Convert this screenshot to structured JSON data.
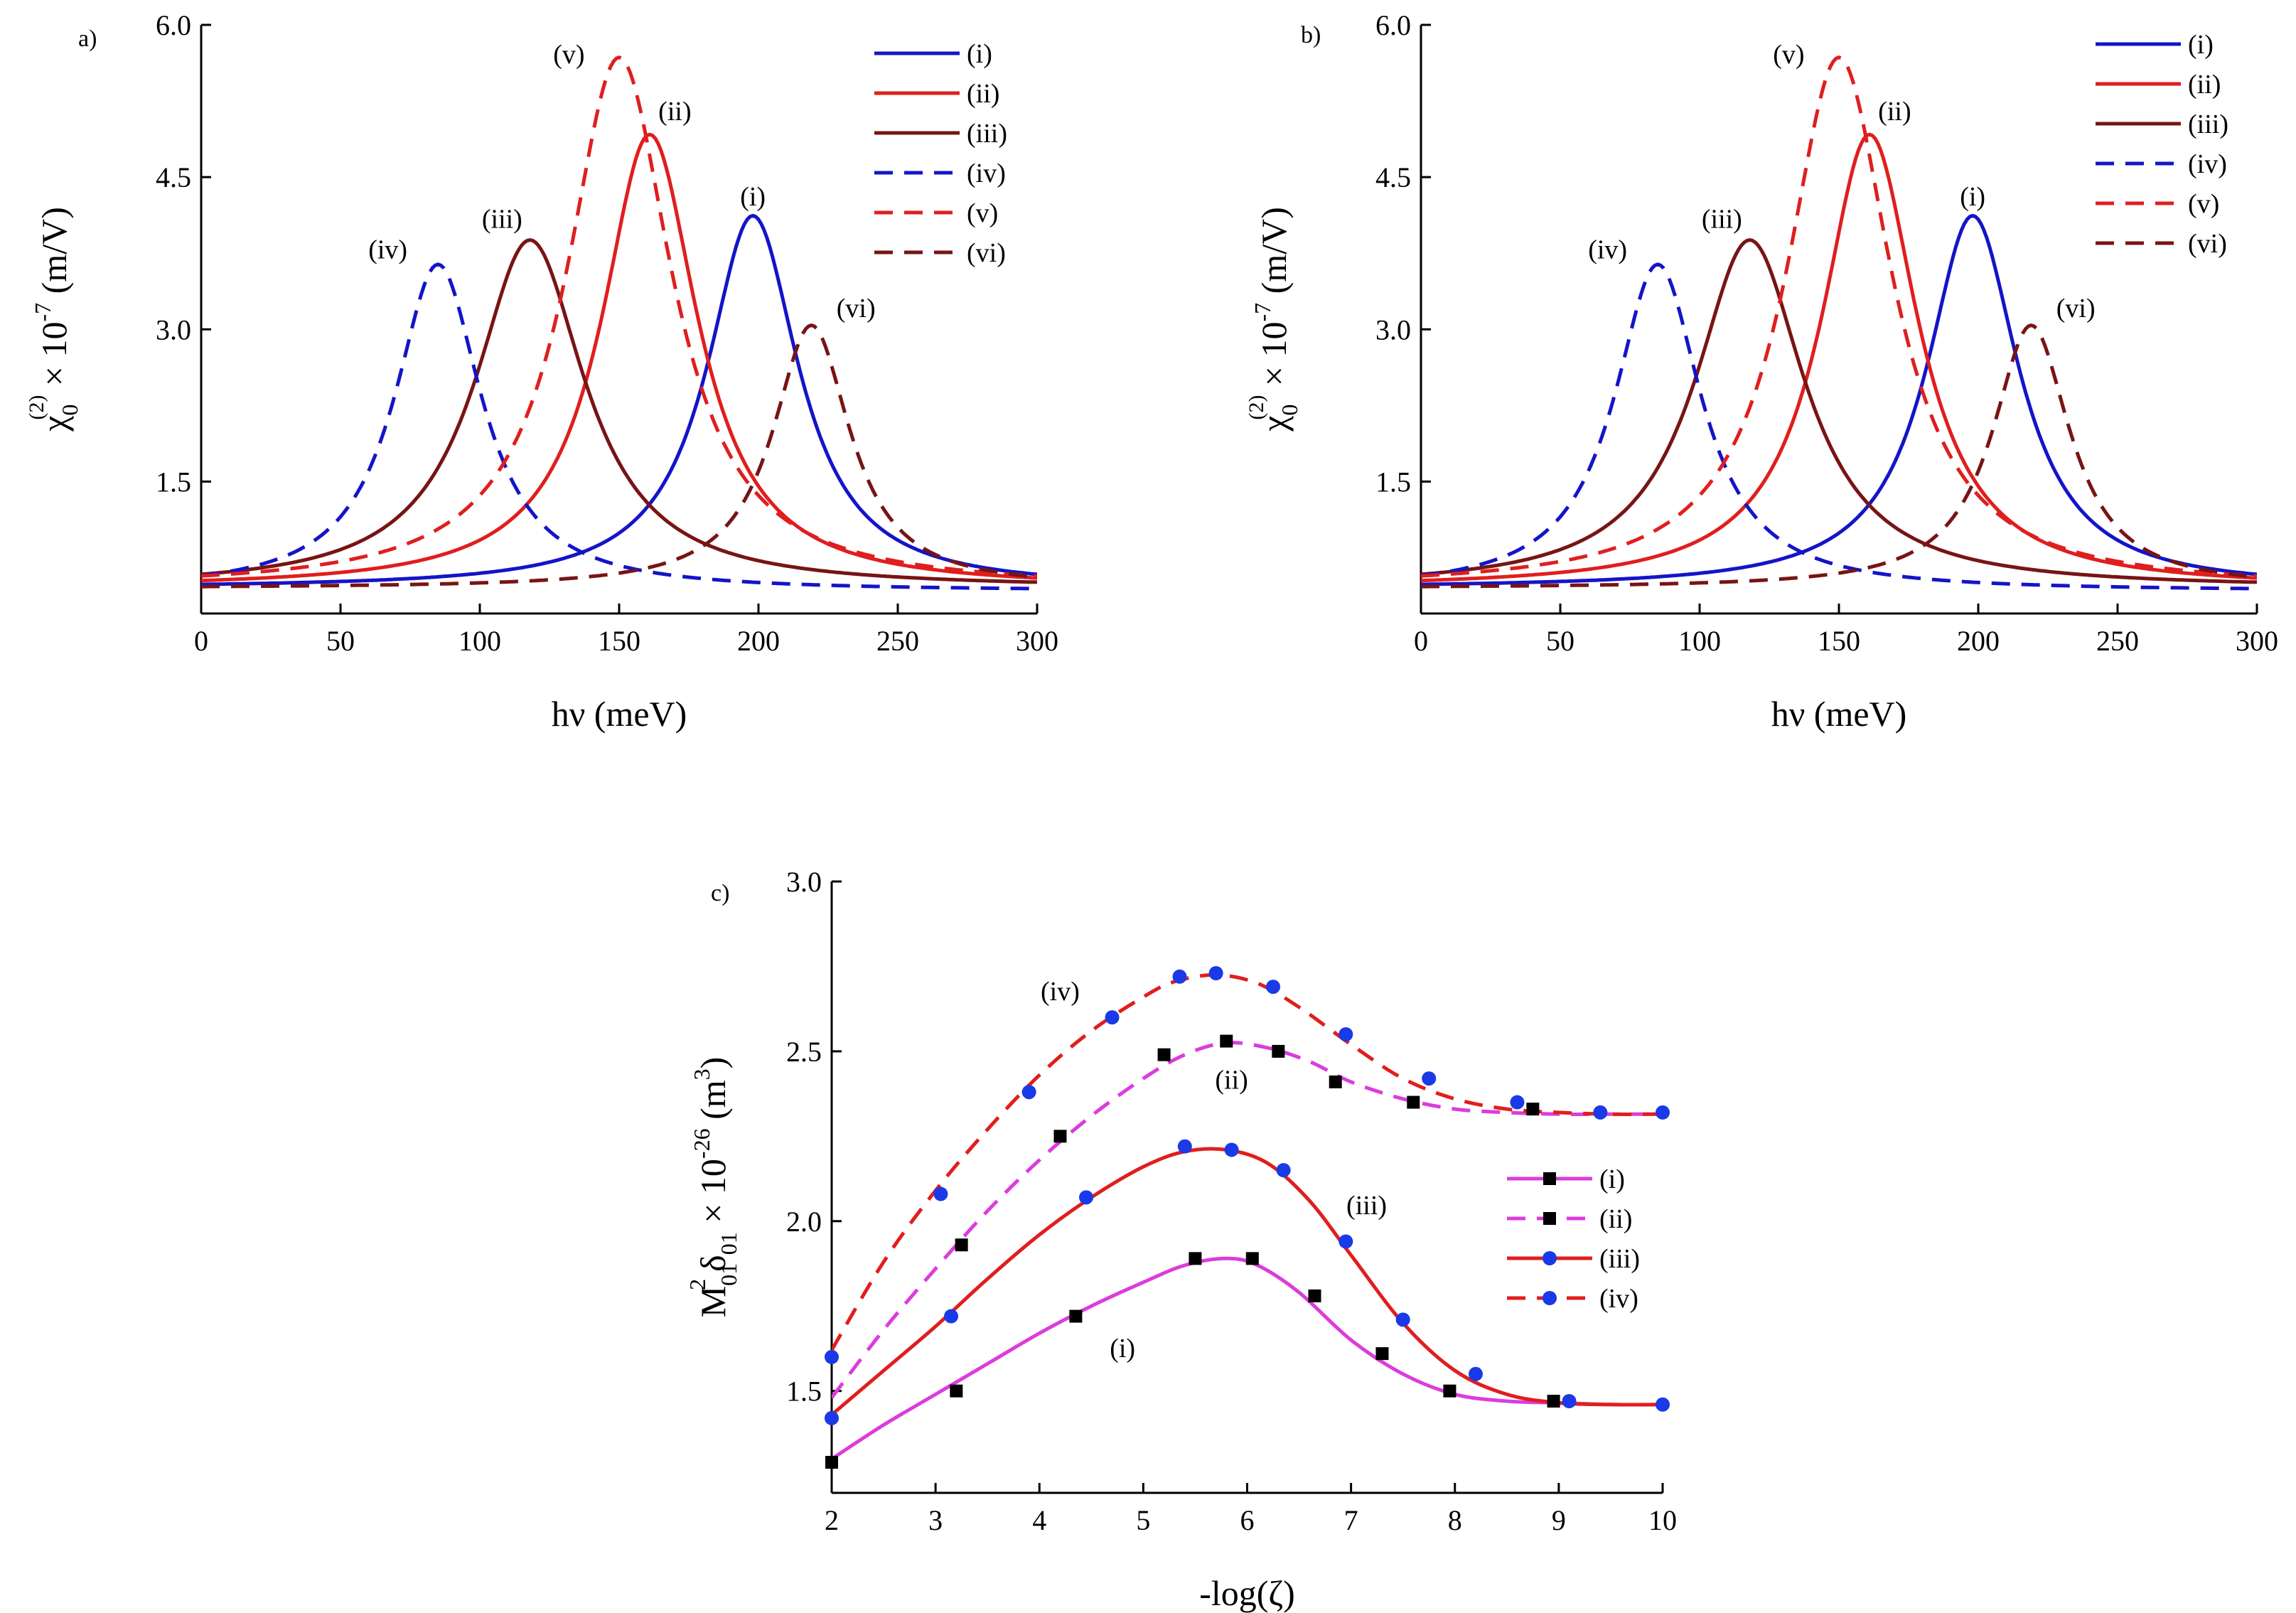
{
  "figure": {
    "colors": {
      "blue": "#1414c8",
      "red": "#e01e1e",
      "darkred": "#781414",
      "magenta": "#dc3cdc"
    }
  },
  "chart_data": [
    {
      "panel": "a)",
      "type": "line",
      "title": "",
      "xlabel": "hν (meV)",
      "ylabel_main": "χ",
      "ylabel_sub": "0",
      "ylabel_sup": "(2)",
      "ylabel_mid": " × 10",
      "ylabel_exp": "-7",
      "ylabel_unit": " (m/V)",
      "xlim": [
        0,
        300
      ],
      "ylim": [
        0.2,
        6.0
      ],
      "xticks": [
        "0",
        "50",
        "100",
        "150",
        "200",
        "250",
        "300"
      ],
      "yticks": [
        "1.5",
        "3.0",
        "4.5",
        "6.0"
      ],
      "legend_position": "top-right",
      "series": [
        {
          "name": "(i)",
          "peak": 198,
          "height": 4.12,
          "width": 20,
          "baseline": 0.45,
          "color": "blue",
          "dash": false
        },
        {
          "name": "(ii)",
          "peak": 161,
          "height": 4.92,
          "width": 21,
          "baseline": 0.45,
          "color": "red",
          "dash": false
        },
        {
          "name": "(iii)",
          "peak": 118,
          "height": 3.88,
          "width": 24,
          "baseline": 0.45,
          "color": "darkred",
          "dash": false
        },
        {
          "name": "(iv)",
          "peak": 85,
          "height": 3.64,
          "width": 19,
          "baseline": 0.42,
          "color": "blue",
          "dash": true
        },
        {
          "name": "(v)",
          "peak": 150,
          "height": 5.68,
          "width": 23,
          "baseline": 0.45,
          "color": "red",
          "dash": true
        },
        {
          "name": "(vi)",
          "peak": 219,
          "height": 3.04,
          "width": 17,
          "baseline": 0.45,
          "color": "darkred",
          "dash": true
        }
      ],
      "annotations": [
        {
          "text": "(i)",
          "x": 198,
          "y": 4.22
        },
        {
          "text": "(ii)",
          "x": 170,
          "y": 5.06
        },
        {
          "text": "(iii)",
          "x": 108,
          "y": 4.0
        },
        {
          "text": "(iv)",
          "x": 67,
          "y": 3.7
        },
        {
          "text": "(v)",
          "x": 132,
          "y": 5.62
        },
        {
          "text": "(vi)",
          "x": 235,
          "y": 3.12
        }
      ]
    },
    {
      "panel": "b)",
      "type": "line",
      "title": "",
      "xlabel": "hν (meV)",
      "ylabel_main": "χ",
      "ylabel_sub": "0",
      "ylabel_sup": "(2)",
      "ylabel_mid": " × 10",
      "ylabel_exp": "-7",
      "ylabel_unit": " (m/V)",
      "xlim": [
        0,
        300
      ],
      "ylim": [
        0.2,
        6.0
      ],
      "xticks": [
        "0",
        "50",
        "100",
        "150",
        "200",
        "250",
        "300"
      ],
      "yticks": [
        "1.5",
        "3.0",
        "4.5",
        "6.0"
      ],
      "legend_position": "top-right",
      "series": [
        {
          "name": "(i)",
          "peak": 198,
          "height": 4.12,
          "width": 20,
          "baseline": 0.45,
          "color": "blue",
          "dash": false
        },
        {
          "name": "(ii)",
          "peak": 161,
          "height": 4.92,
          "width": 21,
          "baseline": 0.45,
          "color": "red",
          "dash": false
        },
        {
          "name": "(iii)",
          "peak": 118,
          "height": 3.88,
          "width": 24,
          "baseline": 0.45,
          "color": "darkred",
          "dash": false
        },
        {
          "name": "(iv)",
          "peak": 85,
          "height": 3.64,
          "width": 19,
          "baseline": 0.42,
          "color": "blue",
          "dash": true
        },
        {
          "name": "(v)",
          "peak": 150,
          "height": 5.68,
          "width": 23,
          "baseline": 0.45,
          "color": "red",
          "dash": true
        },
        {
          "name": "(vi)",
          "peak": 219,
          "height": 3.04,
          "width": 17,
          "baseline": 0.45,
          "color": "darkred",
          "dash": true
        }
      ],
      "annotations": [
        {
          "text": "(i)",
          "x": 198,
          "y": 4.22
        },
        {
          "text": "(ii)",
          "x": 170,
          "y": 5.06
        },
        {
          "text": "(iii)",
          "x": 108,
          "y": 4.0
        },
        {
          "text": "(iv)",
          "x": 67,
          "y": 3.7
        },
        {
          "text": "(v)",
          "x": 132,
          "y": 5.62
        },
        {
          "text": "(vi)",
          "x": 235,
          "y": 3.12
        }
      ]
    },
    {
      "panel": "c)",
      "type": "line",
      "title": "",
      "xlabel": "-log(ζ)",
      "ylabel_main": "M",
      "ylabel_sub": "01",
      "ylabel_sup": "2",
      "ylabel_mid": "δ",
      "ylabel_sub2": "01",
      "ylabel_mid2": " × 10",
      "ylabel_exp": "-26",
      "ylabel_unit": " (m",
      "ylabel_unit_exp": "3",
      "ylabel_unit_end": ")",
      "xlim": [
        2,
        10
      ],
      "ylim": [
        1.2,
        3.0
      ],
      "xticks": [
        "2",
        "3",
        "4",
        "5",
        "6",
        "7",
        "8",
        "9",
        "10"
      ],
      "yticks": [
        "1.5",
        "2.0",
        "2.5",
        "3.0"
      ],
      "legend_position": "right",
      "series": [
        {
          "name": "(i)",
          "color": "magenta",
          "dash": false,
          "marker": "square",
          "x": [
            2,
            2.5,
            3,
            3.5,
            4,
            4.5,
            5,
            5.4,
            5.8,
            6.1,
            6.5,
            7,
            7.5,
            8,
            8.5,
            9,
            9.5,
            10
          ],
          "y": [
            1.3,
            1.4,
            1.49,
            1.58,
            1.67,
            1.75,
            1.82,
            1.87,
            1.89,
            1.87,
            1.79,
            1.65,
            1.55,
            1.49,
            1.47,
            1.465,
            1.46,
            1.46
          ],
          "points_x": [
            2.0,
            3.2,
            4.35,
            5.5,
            6.05,
            6.65,
            7.3,
            7.95,
            8.95
          ],
          "points_y": [
            1.29,
            1.5,
            1.72,
            1.89,
            1.89,
            1.78,
            1.61,
            1.5,
            1.47
          ]
        },
        {
          "name": "(ii)",
          "color": "magenta",
          "dash": true,
          "marker": "square",
          "x": [
            2,
            2.5,
            3,
            3.5,
            4,
            4.5,
            5,
            5.4,
            5.8,
            6.2,
            6.6,
            7,
            7.5,
            8,
            8.5,
            9,
            9.5,
            10
          ],
          "y": [
            1.48,
            1.68,
            1.86,
            2.03,
            2.18,
            2.31,
            2.42,
            2.49,
            2.525,
            2.51,
            2.47,
            2.41,
            2.36,
            2.33,
            2.32,
            2.315,
            2.315,
            2.315
          ],
          "points_x": [
            3.25,
            4.2,
            5.2,
            5.8,
            6.3,
            6.85,
            7.6,
            8.75
          ],
          "points_y": [
            1.93,
            2.25,
            2.49,
            2.53,
            2.5,
            2.41,
            2.35,
            2.33
          ]
        },
        {
          "name": "(iii)",
          "color": "red",
          "dash": false,
          "marker": "circle",
          "x": [
            2,
            2.5,
            3,
            3.5,
            4,
            4.5,
            5,
            5.4,
            5.8,
            6.2,
            6.6,
            7,
            7.5,
            8,
            8.5,
            9,
            9.5,
            10
          ],
          "y": [
            1.43,
            1.56,
            1.69,
            1.83,
            1.96,
            2.07,
            2.16,
            2.205,
            2.21,
            2.17,
            2.06,
            1.9,
            1.7,
            1.56,
            1.49,
            1.465,
            1.46,
            1.46
          ],
          "points_x": [
            2.0,
            3.15,
            4.45,
            5.4,
            5.85,
            6.35,
            6.95,
            7.5,
            8.2,
            9.1,
            10.0
          ],
          "points_y": [
            1.42,
            1.72,
            2.07,
            2.22,
            2.21,
            2.15,
            1.94,
            1.71,
            1.55,
            1.47,
            1.46
          ]
        },
        {
          "name": "(iv)",
          "color": "red",
          "dash": true,
          "marker": "circle",
          "x": [
            2,
            2.5,
            3,
            3.5,
            4,
            4.5,
            5,
            5.3,
            5.7,
            6.1,
            6.5,
            7,
            7.5,
            8,
            8.5,
            9,
            9.5,
            10
          ],
          "y": [
            1.62,
            1.88,
            2.09,
            2.27,
            2.43,
            2.56,
            2.66,
            2.705,
            2.725,
            2.7,
            2.63,
            2.52,
            2.42,
            2.36,
            2.33,
            2.32,
            2.315,
            2.315
          ],
          "points_x": [
            2.0,
            3.05,
            3.9,
            4.7,
            5.35,
            5.7,
            6.25,
            6.95,
            7.75,
            8.6,
            9.4,
            10.0
          ],
          "points_y": [
            1.6,
            2.08,
            2.38,
            2.6,
            2.72,
            2.73,
            2.69,
            2.55,
            2.42,
            2.35,
            2.32,
            2.32
          ]
        }
      ],
      "annotations": [
        {
          "text": "(iv)",
          "x": 4.2,
          "y": 2.65
        },
        {
          "text": "(ii)",
          "x": 5.85,
          "y": 2.39
        },
        {
          "text": "(iii)",
          "x": 7.15,
          "y": 2.02
        },
        {
          "text": "(i)",
          "x": 4.8,
          "y": 1.6
        }
      ]
    }
  ]
}
